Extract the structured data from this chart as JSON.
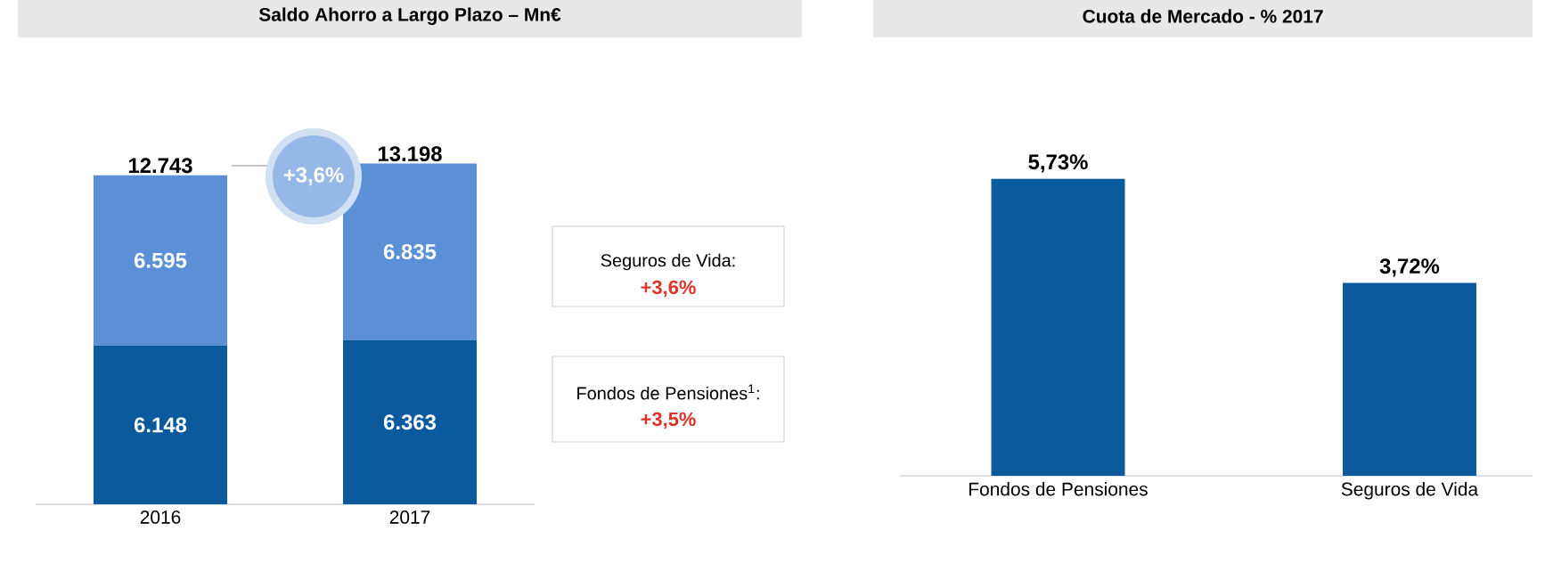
{
  "chart_data": [
    {
      "type": "bar",
      "title": "Saldo Ahorro a Largo Plazo – Mn€",
      "categories": [
        "2016",
        "2017"
      ],
      "stacked": true,
      "series": [
        {
          "color": "#0b5a9e",
          "values": [
            6148,
            6363
          ],
          "value_labels": [
            "6.148",
            "6.363"
          ]
        },
        {
          "color": "#5b8fd6",
          "values": [
            6595,
            6835
          ],
          "value_labels": [
            "6.595",
            "6.835"
          ]
        }
      ],
      "totals": [
        "12.743",
        "13.198"
      ],
      "annotations": [
        "+3,6%",
        "Seguros de Vida:",
        "+3,6%",
        "Fondos de Pensiones$^{1}$:",
        "+3,5%"
      ]
    },
    {
      "type": "bar",
      "title": "Cuota de Mercado - % 2017",
      "categories": [
        "Fondos de Pensiones",
        "Seguros de Vida"
      ],
      "values": [
        5.73,
        3.72
      ],
      "color": "#0b5a9e",
      "value_labels": [
        "5,73%",
        "3,72%"
      ]
    }
  ]
}
